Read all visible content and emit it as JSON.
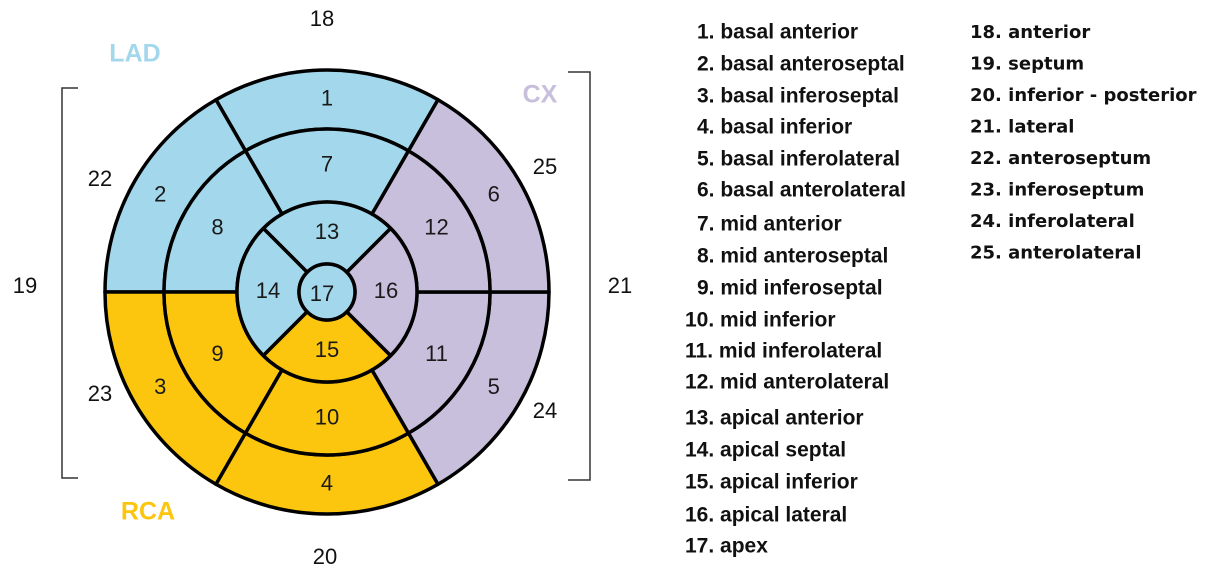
{
  "segments": [
    "1",
    "2",
    "3",
    "4",
    "5",
    "6",
    "7",
    "8",
    "9",
    "10",
    "11",
    "12",
    "13",
    "14",
    "15",
    "16",
    "17"
  ],
  "territories": [
    "LAD",
    "CX",
    "RCA"
  ],
  "regions": [
    "18",
    "19",
    "20",
    "21",
    "22",
    "23",
    "24",
    "25"
  ],
  "legend": {
    "segment_names": [
      "1. basal anterior",
      "2. basal anteroseptal",
      "3. basal inferoseptal",
      "4. basal inferior",
      "5. basal inferolateral",
      "6. basal anterolateral",
      "7. mid anterior",
      "8. mid anteroseptal",
      "9. mid inferoseptal",
      "10. mid inferior",
      "11. mid inferolateral",
      "12. mid anterolateral",
      "13. apical anterior",
      "14. apical septal",
      "15. apical inferior",
      "16. apical lateral",
      "17. apex"
    ],
    "region_names": [
      "18. anterior",
      "19. septum",
      "20. inferior - posterior",
      "21. lateral",
      "22. anteroseptum",
      "23. inferoseptum",
      "24. inferolateral",
      "25. anterolateral"
    ]
  }
}
